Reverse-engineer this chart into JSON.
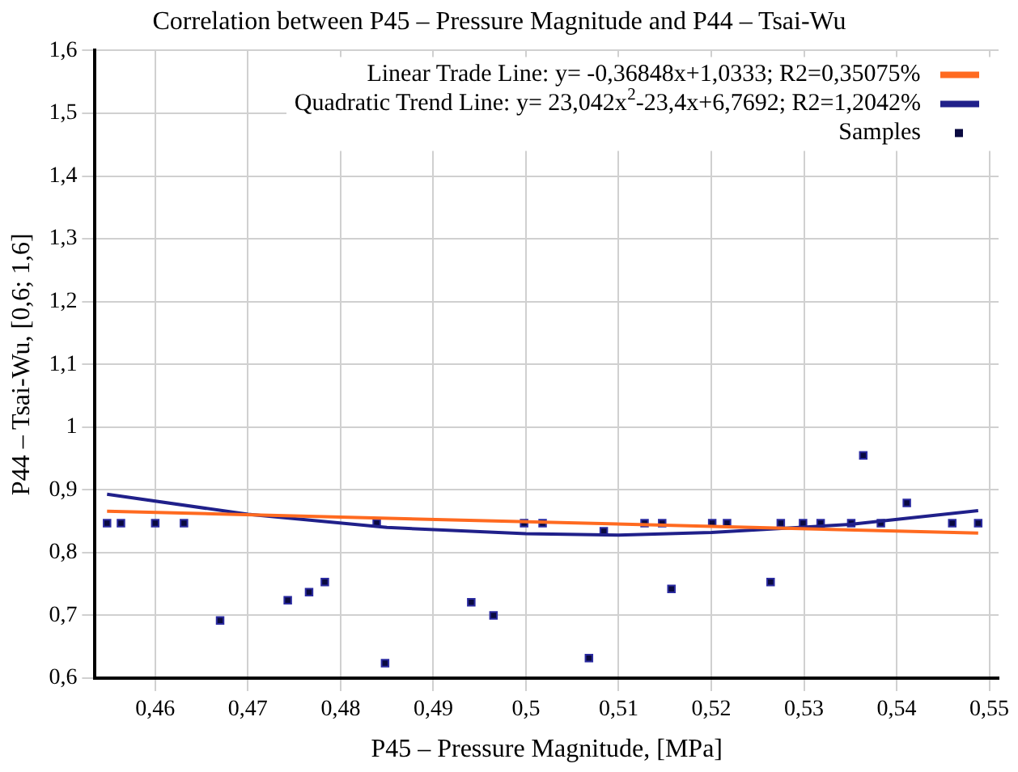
{
  "chart_data": {
    "type": "scatter",
    "title": "Correlation between P45 – Pressure Magnitude and P44 – Tsai-Wu",
    "xlabel": "P45 – Pressure Magnitude, [MPa]",
    "ylabel": "P44 – Tsai-Wu, [0,6; 1,6]",
    "xlim": [
      0.4535,
      0.551
    ],
    "ylim": [
      0.6,
      1.6
    ],
    "xticks": [
      {
        "value": 0.46,
        "label": "0,46"
      },
      {
        "value": 0.47,
        "label": "0,47"
      },
      {
        "value": 0.48,
        "label": "0,48"
      },
      {
        "value": 0.49,
        "label": "0,49"
      },
      {
        "value": 0.5,
        "label": "0,5"
      },
      {
        "value": 0.51,
        "label": "0,51"
      },
      {
        "value": 0.52,
        "label": "0,52"
      },
      {
        "value": 0.53,
        "label": "0,53"
      },
      {
        "value": 0.54,
        "label": "0,54"
      },
      {
        "value": 0.55,
        "label": "0,55"
      }
    ],
    "yticks": [
      {
        "value": 0.6,
        "label": "0,6"
      },
      {
        "value": 0.7,
        "label": "0,7"
      },
      {
        "value": 0.8,
        "label": "0,8"
      },
      {
        "value": 0.9,
        "label": "0,9"
      },
      1,
      {
        "value": 1.1,
        "label": "1,1"
      },
      {
        "value": 1.2,
        "label": "1,2"
      },
      {
        "value": 1.3,
        "label": "1,3"
      },
      {
        "value": 1.4,
        "label": "1,4"
      },
      {
        "value": 1.5,
        "label": "1,5"
      },
      {
        "value": 1.6,
        "label": "1,6"
      }
    ],
    "grid": true,
    "legend": "top right",
    "marker": "square",
    "series": [
      {
        "name": "Linear Trade Line: y= -0,36848x+1,0333; R2=0,35075%",
        "type": "line",
        "marker": "none",
        "color": "#ff6a20",
        "x": [
          0.4548,
          0.5488
        ],
        "values": [
          0.866,
          0.831
        ]
      },
      {
        "name": "Quadratic Trend Line: y= 23,042x$^{2}$-23,4x+6,7692; R2=1,2042%",
        "type": "line",
        "marker": "none",
        "color": "#20208a",
        "x": [
          0.4548,
          0.47,
          0.485,
          0.5,
          0.51,
          0.52,
          0.535,
          0.5488
        ],
        "values": [
          0.893,
          0.861,
          0.84,
          0.83,
          0.828,
          0.832,
          0.845,
          0.867
        ]
      },
      {
        "name": "Samples",
        "type": "scatter",
        "color": "#0a0a40",
        "x": [
          0.4548,
          0.4563,
          0.46,
          0.4631,
          0.467,
          0.4743,
          0.4766,
          0.4783,
          0.4839,
          0.4848,
          0.4941,
          0.4965,
          0.4998,
          0.5018,
          0.5068,
          0.5084,
          0.5128,
          0.5147,
          0.5157,
          0.5201,
          0.5217,
          0.5264,
          0.5275,
          0.5299,
          0.5318,
          0.5351,
          0.5364,
          0.5383,
          0.5411,
          0.546,
          0.5488
        ],
        "values": [
          0.847,
          0.847,
          0.847,
          0.847,
          0.692,
          0.724,
          0.737,
          0.753,
          0.847,
          0.624,
          0.721,
          0.7,
          0.847,
          0.847,
          0.632,
          0.834,
          0.847,
          0.847,
          0.742,
          0.847,
          0.847,
          0.753,
          0.847,
          0.847,
          0.847,
          0.847,
          0.955,
          0.847,
          0.879,
          0.847,
          0.847
        ]
      }
    ]
  }
}
